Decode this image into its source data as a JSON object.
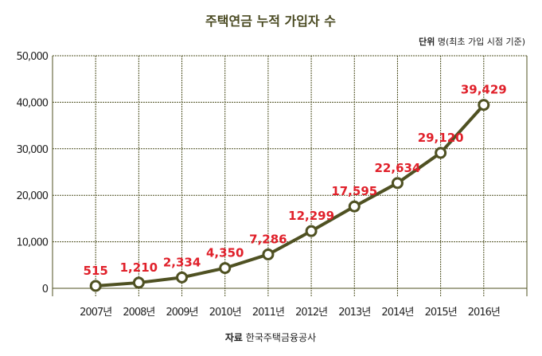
{
  "chart_data": {
    "type": "line",
    "title": "주택연금 누적 가입자 수",
    "unit_label_bold": "단위",
    "unit_label": "명(최초 가입 시점 기준)",
    "source_label_bold": "자료",
    "source_label": "한국주택금융공사",
    "categories": [
      "2007년",
      "2008년",
      "2009년",
      "2010년",
      "2011년",
      "2012년",
      "2013년",
      "2014년",
      "2015년",
      "2016년"
    ],
    "values": [
      515,
      1210,
      2334,
      4350,
      7286,
      12299,
      17595,
      22634,
      29120,
      39429
    ],
    "data_labels": [
      "515",
      "1,210",
      "2,334",
      "4,350",
      "7,286",
      "12,299",
      "17,595",
      "22,634",
      "29,120",
      "39,429"
    ],
    "yticks": [
      0,
      10000,
      20000,
      30000,
      40000,
      50000
    ],
    "ytick_labels": [
      "0",
      "10,000",
      "20,000",
      "30,000",
      "40,000",
      "50,000"
    ],
    "ylim": [
      0,
      50000
    ],
    "grid": true,
    "colors": {
      "line": "#4f5122",
      "label": "#e0202a",
      "grid": "#4f5122"
    }
  }
}
